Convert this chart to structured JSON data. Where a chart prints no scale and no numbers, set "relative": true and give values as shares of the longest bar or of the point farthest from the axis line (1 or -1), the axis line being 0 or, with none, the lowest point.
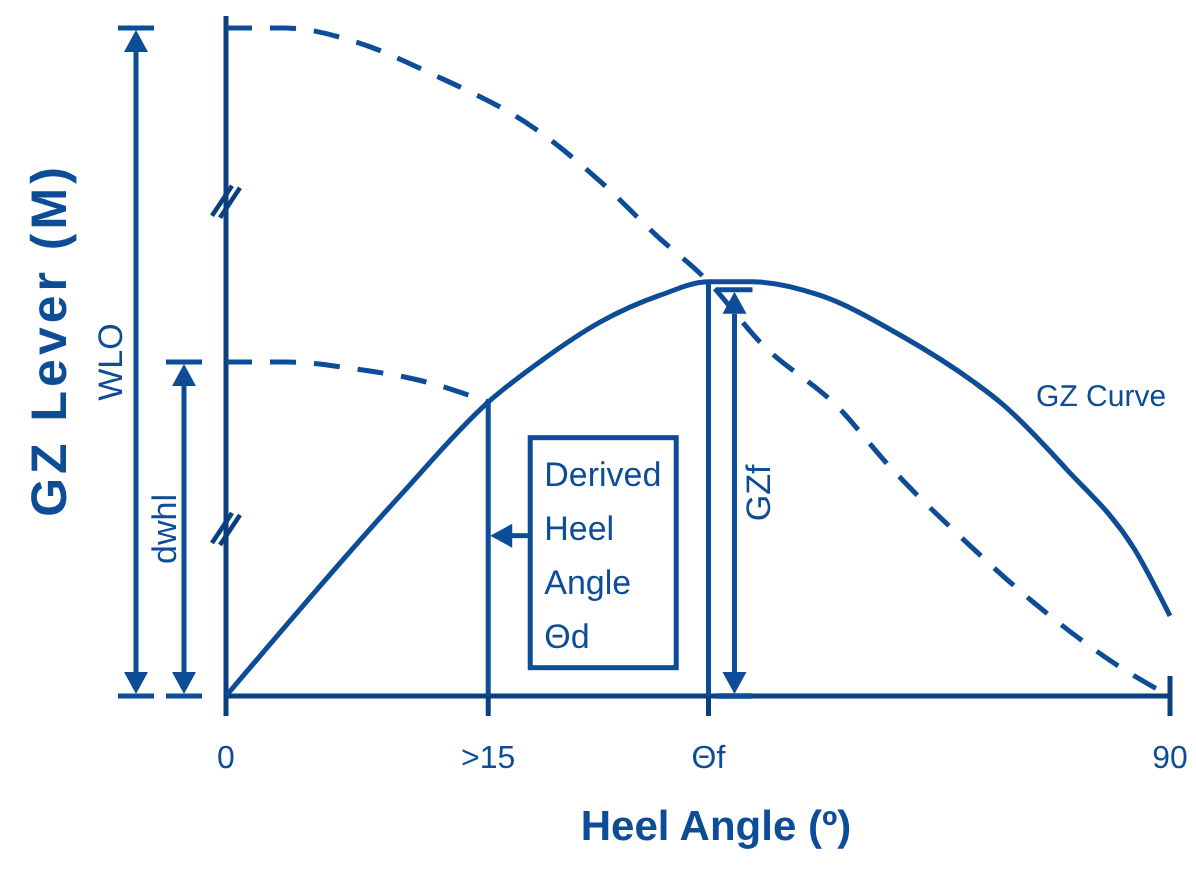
{
  "chart_data": {
    "type": "line",
    "relative": true,
    "xlabel": "Heel Angle (º)",
    "ylabel": "GZ Lever (M)",
    "xlim": [
      0,
      90
    ],
    "xticks": [
      0,
      {
        "value": 25,
        "label": ">15"
      },
      {
        "value": 46,
        "label": "Θf"
      },
      90
    ],
    "series": [
      {
        "name": "GZ Curve",
        "color": "#0d4c96",
        "x": [
          0,
          16.6,
          25,
          29.9,
          35.7,
          41.4,
          46,
          50.3,
          56.6,
          64.3,
          71.3,
          73.8,
          80.1,
          86.6,
          90
        ],
        "values": [
          0,
          0.3,
          0.44,
          0.5,
          0.56,
          0.6,
          0.62,
          0.62,
          0.6,
          0.54,
          0.47,
          0.44,
          0.34,
          0.22,
          0.12
        ]
      },
      {
        "color": "#0d4c96",
        "line_style": "dashed",
        "x": [
          0,
          5.7,
          12.2,
          19.8,
          29.4,
          35.7,
          41,
          46,
          50.9,
          58.5,
          62.9,
          70.6,
          77,
          86.6,
          90
        ],
        "values": [
          1,
          1,
          0.98,
          0.93,
          0.85,
          0.77,
          0.69,
          0.62,
          0.53,
          0.43,
          0.35,
          0.23,
          0.14,
          0.03,
          0
        ]
      },
      {
        "color": "#0d4c96",
        "line_style": "dashed",
        "x": [
          0,
          5.7,
          12.2,
          19.1,
          25
        ],
        "values": [
          0.5,
          0.5,
          0.49,
          0.47,
          0.44
        ]
      },
      {
        "color": "#0d4c96",
        "x": [
          25,
          25
        ],
        "values": [
          0,
          0.44
        ]
      },
      {
        "color": "#0d4c96",
        "x": [
          46,
          46
        ],
        "values": [
          0,
          0.62
        ]
      }
    ],
    "annotations": [
      "WLO",
      "dwhl",
      "GZf",
      {
        "text": "Derived Heel Angle Θd",
        "x": 25,
        "y": 0.24
      }
    ]
  }
}
